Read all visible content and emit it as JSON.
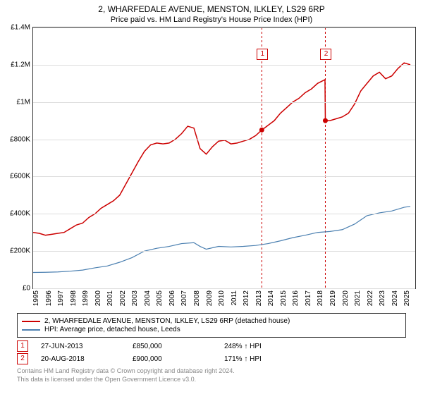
{
  "title": "2, WHARFEDALE AVENUE, MENSTON, ILKLEY, LS29 6RP",
  "subtitle": "Price paid vs. HM Land Registry's House Price Index (HPI)",
  "chart": {
    "type": "line",
    "background_color": "#ffffff",
    "grid_color": "#dddddd",
    "border_color": "#333333",
    "x": {
      "min": 1995,
      "max": 2025.9,
      "ticks": [
        1995,
        1996,
        1997,
        1998,
        1999,
        2000,
        2001,
        2002,
        2003,
        2004,
        2005,
        2006,
        2007,
        2008,
        2009,
        2010,
        2011,
        2012,
        2013,
        2014,
        2015,
        2016,
        2017,
        2018,
        2019,
        2020,
        2021,
        2022,
        2023,
        2024,
        2025
      ]
    },
    "y": {
      "min": 0,
      "max": 1400000,
      "ticks": [
        0,
        200000,
        400000,
        600000,
        800000,
        1000000,
        1200000,
        1400000
      ],
      "tick_labels": [
        "£0",
        "£200K",
        "£400K",
        "£600K",
        "£800K",
        "£1M",
        "£1.2M",
        "£1.4M"
      ]
    },
    "series": [
      {
        "name": "price",
        "label": "2, WHARFEDALE AVENUE, MENSTON, ILKLEY, LS29 6RP (detached house)",
        "color": "#cc0000",
        "line_width": 1.5,
        "data": [
          [
            1995,
            300000
          ],
          [
            1995.5,
            295000
          ],
          [
            1996,
            285000
          ],
          [
            1996.5,
            290000
          ],
          [
            1997,
            295000
          ],
          [
            1997.5,
            300000
          ],
          [
            1998,
            320000
          ],
          [
            1998.5,
            340000
          ],
          [
            1999,
            350000
          ],
          [
            1999.5,
            380000
          ],
          [
            2000,
            400000
          ],
          [
            2000.5,
            430000
          ],
          [
            2001,
            450000
          ],
          [
            2001.5,
            470000
          ],
          [
            2002,
            500000
          ],
          [
            2002.5,
            560000
          ],
          [
            2003,
            620000
          ],
          [
            2003.5,
            680000
          ],
          [
            2004,
            735000
          ],
          [
            2004.5,
            770000
          ],
          [
            2005,
            780000
          ],
          [
            2005.5,
            775000
          ],
          [
            2006,
            780000
          ],
          [
            2006.5,
            800000
          ],
          [
            2007,
            830000
          ],
          [
            2007.5,
            870000
          ],
          [
            2008,
            860000
          ],
          [
            2008.5,
            750000
          ],
          [
            2009,
            720000
          ],
          [
            2009.5,
            760000
          ],
          [
            2010,
            790000
          ],
          [
            2010.5,
            795000
          ],
          [
            2011,
            775000
          ],
          [
            2011.5,
            780000
          ],
          [
            2012,
            790000
          ],
          [
            2012.5,
            800000
          ],
          [
            2013,
            820000
          ],
          [
            2013.49,
            850000
          ],
          [
            2013.5,
            850000
          ],
          [
            2014,
            875000
          ],
          [
            2014.5,
            900000
          ],
          [
            2015,
            940000
          ],
          [
            2015.5,
            970000
          ],
          [
            2016,
            1000000
          ],
          [
            2016.5,
            1020000
          ],
          [
            2017,
            1050000
          ],
          [
            2017.5,
            1070000
          ],
          [
            2018,
            1100000
          ],
          [
            2018.6,
            1120000
          ],
          [
            2018.63,
            900000
          ],
          [
            2019,
            900000
          ],
          [
            2019.5,
            910000
          ],
          [
            2020,
            920000
          ],
          [
            2020.5,
            940000
          ],
          [
            2021,
            990000
          ],
          [
            2021.5,
            1060000
          ],
          [
            2022,
            1100000
          ],
          [
            2022.5,
            1140000
          ],
          [
            2023,
            1160000
          ],
          [
            2023.5,
            1125000
          ],
          [
            2024,
            1140000
          ],
          [
            2024.5,
            1180000
          ],
          [
            2025,
            1210000
          ],
          [
            2025.5,
            1200000
          ]
        ]
      },
      {
        "name": "hpi",
        "label": "HPI: Average price, detached house, Leeds",
        "color": "#4a7fb0",
        "line_width": 1.2,
        "data": [
          [
            1995,
            85000
          ],
          [
            1996,
            86000
          ],
          [
            1997,
            88000
          ],
          [
            1998,
            92000
          ],
          [
            1999,
            98000
          ],
          [
            2000,
            110000
          ],
          [
            2001,
            120000
          ],
          [
            2002,
            140000
          ],
          [
            2003,
            165000
          ],
          [
            2004,
            200000
          ],
          [
            2005,
            215000
          ],
          [
            2006,
            225000
          ],
          [
            2007,
            240000
          ],
          [
            2008,
            245000
          ],
          [
            2008.5,
            225000
          ],
          [
            2009,
            210000
          ],
          [
            2010,
            225000
          ],
          [
            2011,
            222000
          ],
          [
            2012,
            225000
          ],
          [
            2013,
            230000
          ],
          [
            2014,
            240000
          ],
          [
            2015,
            255000
          ],
          [
            2016,
            272000
          ],
          [
            2017,
            285000
          ],
          [
            2018,
            300000
          ],
          [
            2019,
            305000
          ],
          [
            2020,
            315000
          ],
          [
            2021,
            345000
          ],
          [
            2022,
            390000
          ],
          [
            2023,
            405000
          ],
          [
            2024,
            415000
          ],
          [
            2025,
            435000
          ],
          [
            2025.5,
            440000
          ]
        ]
      }
    ],
    "markers": [
      {
        "x": 2013.49,
        "y": 850000,
        "label": "1",
        "label_y_offset": -0.42
      },
      {
        "x": 2018.63,
        "y": 900000,
        "label": "2",
        "label_y_offset": -0.42
      }
    ],
    "marker_line_color": "#cc0000",
    "marker_dot_color": "#cc0000"
  },
  "legend": {
    "border_color": "#333333",
    "items": [
      {
        "color": "#cc0000",
        "label": "2, WHARFEDALE AVENUE, MENSTON, ILKLEY, LS29 6RP (detached house)"
      },
      {
        "color": "#4a7fb0",
        "label": "HPI: Average price, detached house, Leeds"
      }
    ]
  },
  "sales": [
    {
      "marker": "1",
      "date": "27-JUN-2013",
      "price": "£850,000",
      "change": "248% ↑ HPI"
    },
    {
      "marker": "2",
      "date": "20-AUG-2018",
      "price": "£900,000",
      "change": "171% ↑ HPI"
    }
  ],
  "footer_line1": "Contains HM Land Registry data © Crown copyright and database right 2024.",
  "footer_line2": "This data is licensed under the Open Government Licence v3.0."
}
